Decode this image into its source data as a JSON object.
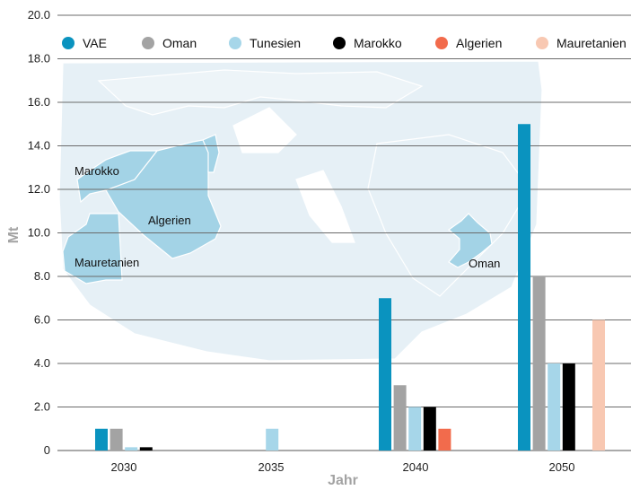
{
  "chart_data": {
    "type": "bar",
    "xlabel": "Jahr",
    "ylabel": "Mt",
    "ylim": [
      0,
      20
    ],
    "yticks": [
      "0",
      "2.0",
      "4.0",
      "6.0",
      "8.0",
      "10.0",
      "12.0",
      "14.0",
      "16.0",
      "18.0",
      "20.0"
    ],
    "categories": [
      "2030",
      "2035",
      "2040",
      "2050"
    ],
    "series": [
      {
        "name": "VAE",
        "color": "#0a93bf",
        "values": [
          1,
          0,
          7,
          15
        ]
      },
      {
        "name": "Oman",
        "color": "#a3a3a3",
        "values": [
          1,
          0,
          3,
          8
        ]
      },
      {
        "name": "Tunesien",
        "color": "#a6d6e9",
        "values": [
          0.15,
          1,
          2,
          4
        ]
      },
      {
        "name": "Marokko",
        "color": "#000000",
        "values": [
          0.15,
          0,
          2,
          4
        ]
      },
      {
        "name": "Algerien",
        "color": "#f26b4c",
        "values": [
          0,
          0,
          1,
          0
        ]
      },
      {
        "name": "Mauretanien",
        "color": "#f8c8b2",
        "values": [
          0,
          0,
          0,
          6
        ]
      }
    ],
    "legend_position": "top",
    "background_map_labels": [
      "Marokko",
      "Algerien",
      "Mauretanien",
      "Oman"
    ]
  }
}
